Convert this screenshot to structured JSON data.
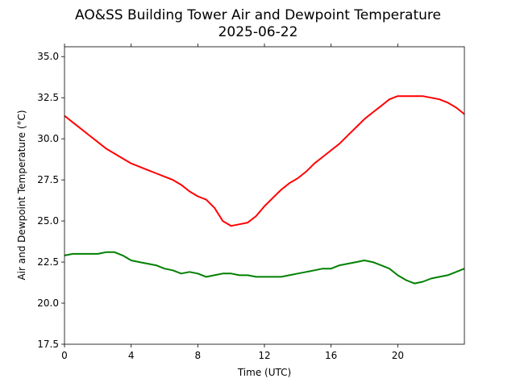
{
  "chart_data": {
    "type": "line",
    "title": "AO&SS Building Tower Air and Dewpoint Temperature",
    "subtitle": "2025-06-22",
    "xlabel": "Time (UTC)",
    "ylabel": "Air and Dewpoint Temperature (°C)",
    "xlim": [
      0,
      24
    ],
    "ylim": [
      17.5,
      35.6
    ],
    "xticks": [
      0,
      4,
      8,
      12,
      16,
      20
    ],
    "xtick_labels": [
      "0",
      "4",
      "8",
      "12",
      "16",
      "20"
    ],
    "yticks": [
      17.5,
      20.0,
      22.5,
      25.0,
      27.5,
      30.0,
      32.5,
      35.0
    ],
    "ytick_labels": [
      "17.5",
      "20.0",
      "22.5",
      "25.0",
      "27.5",
      "30.0",
      "32.5",
      "35.0"
    ],
    "grid": false,
    "series": [
      {
        "color": "#ff0000",
        "x": [
          0,
          0.5,
          1,
          1.5,
          2,
          2.5,
          3,
          3.5,
          4,
          4.5,
          5,
          5.5,
          6,
          6.5,
          7,
          7.5,
          8,
          8.5,
          9,
          9.5,
          10,
          10.5,
          11,
          11.5,
          12,
          12.5,
          13,
          13.5,
          14,
          14.5,
          15,
          15.5,
          16,
          16.5,
          17,
          17.5,
          18,
          18.5,
          19,
          19.5,
          20,
          20.5,
          21,
          21.5,
          22,
          22.5,
          23,
          23.5,
          24
        ],
        "y": [
          31.4,
          31.0,
          30.6,
          30.2,
          29.8,
          29.4,
          29.1,
          28.8,
          28.5,
          28.3,
          28.1,
          27.9,
          27.7,
          27.5,
          27.2,
          26.8,
          26.5,
          26.3,
          25.8,
          25.0,
          24.7,
          24.8,
          24.9,
          25.3,
          25.9,
          26.4,
          26.9,
          27.3,
          27.6,
          28.0,
          28.5,
          28.9,
          29.3,
          29.7,
          30.2,
          30.7,
          31.2,
          31.6,
          32.0,
          32.4,
          32.6,
          32.6,
          32.6,
          32.6,
          32.5,
          32.4,
          32.2,
          31.9,
          31.5
        ]
      },
      {
        "color": "#008000",
        "x": [
          0,
          0.5,
          1,
          1.5,
          2,
          2.5,
          3,
          3.5,
          4,
          4.5,
          5,
          5.5,
          6,
          6.5,
          7,
          7.5,
          8,
          8.5,
          9,
          9.5,
          10,
          10.5,
          11,
          11.5,
          12,
          12.5,
          13,
          13.5,
          14,
          14.5,
          15,
          15.5,
          16,
          16.5,
          17,
          17.5,
          18,
          18.5,
          19,
          19.5,
          20,
          20.5,
          21,
          21.5,
          22,
          22.5,
          23,
          23.5,
          24
        ],
        "y": [
          22.9,
          23.0,
          23.0,
          23.0,
          23.0,
          23.1,
          23.1,
          22.9,
          22.6,
          22.5,
          22.4,
          22.3,
          22.1,
          22.0,
          21.8,
          21.9,
          21.8,
          21.6,
          21.7,
          21.8,
          21.8,
          21.7,
          21.7,
          21.6,
          21.6,
          21.6,
          21.6,
          21.7,
          21.8,
          21.9,
          22.0,
          22.1,
          22.1,
          22.3,
          22.4,
          22.5,
          22.6,
          22.5,
          22.3,
          22.1,
          21.7,
          21.4,
          21.2,
          21.3,
          21.5,
          21.6,
          21.7,
          21.9,
          22.1
        ]
      }
    ]
  }
}
